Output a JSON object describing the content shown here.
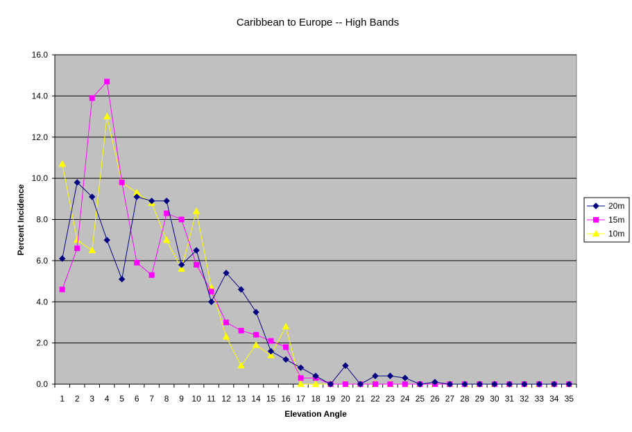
{
  "chart_data": {
    "type": "line",
    "title": "Caribbean to Europe -- High Bands",
    "xlabel": "Elevation Angle",
    "ylabel": "Percent Incidence",
    "ylim": [
      0,
      16
    ],
    "yticks": [
      "0.0",
      "2.0",
      "4.0",
      "6.0",
      "8.0",
      "10.0",
      "12.0",
      "14.0",
      "16.0"
    ],
    "categories": [
      "1",
      "2",
      "3",
      "4",
      "5",
      "6",
      "7",
      "8",
      "9",
      "10",
      "11",
      "12",
      "13",
      "14",
      "15",
      "16",
      "17",
      "18",
      "19",
      "20",
      "21",
      "22",
      "23",
      "24",
      "25",
      "26",
      "27",
      "28",
      "29",
      "30",
      "31",
      "32",
      "33",
      "34",
      "35"
    ],
    "grid": true,
    "legend_position": "right",
    "plot_background": "#c0c0c0",
    "series": [
      {
        "name": "20m",
        "color": "#000080",
        "marker": "diamond",
        "values": [
          6.1,
          9.8,
          9.1,
          7.0,
          5.1,
          9.1,
          8.9,
          8.9,
          5.8,
          6.5,
          4.0,
          5.4,
          4.6,
          3.5,
          1.6,
          1.2,
          0.8,
          0.4,
          0.0,
          0.9,
          0.0,
          0.4,
          0.4,
          0.3,
          0.0,
          0.1,
          0.0,
          0.0,
          0.0,
          0.0,
          0.0,
          0.0,
          0.0,
          0.0,
          0.0
        ]
      },
      {
        "name": "15m",
        "color": "#ff00ff",
        "marker": "square",
        "values": [
          4.6,
          6.6,
          13.9,
          14.7,
          9.8,
          5.9,
          5.3,
          8.3,
          8.0,
          5.8,
          4.5,
          3.0,
          2.6,
          2.4,
          2.1,
          1.8,
          0.3,
          0.3,
          0.0,
          0.0,
          0.0,
          0.0,
          0.0,
          0.0,
          0.0,
          0.0,
          0.0,
          0.0,
          0.0,
          0.0,
          0.0,
          0.0,
          0.0,
          0.0,
          0.0
        ]
      },
      {
        "name": "10m",
        "color": "#ffff00",
        "marker": "triangle",
        "values": [
          10.7,
          7.0,
          6.5,
          13.0,
          9.8,
          9.3,
          8.8,
          7.0,
          5.6,
          8.4,
          4.7,
          2.3,
          0.9,
          1.9,
          1.4,
          2.8,
          0.0,
          0.0,
          0.0,
          0.0,
          0.0,
          0.0,
          0.0,
          0.0,
          0.0,
          0.0,
          0.0,
          0.0,
          0.0,
          0.0,
          0.0,
          0.0,
          0.0,
          0.0,
          0.0
        ]
      }
    ]
  }
}
